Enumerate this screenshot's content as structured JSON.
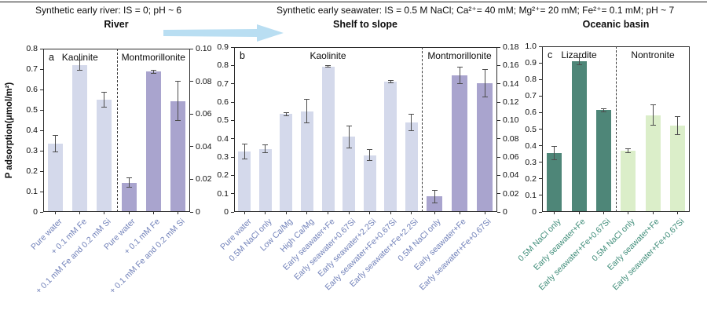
{
  "header": {
    "left": "Synthetic early river: IS = 0; pH ~ 6",
    "right": "Synthetic early seawater: IS = 0.5 M NaCl; Ca²⁺= 40 mM; Mg²⁺= 20 mM; Fe²⁺= 0.1 mM; pH ~ 7"
  },
  "y_axis_title": "P adsorption(μmol/m²)",
  "colors": {
    "kaolinite": "#d4d9eb",
    "montmorillonite": "#a9a4ce",
    "lizardite": "#4e8678",
    "nontronite": "#dbeec9",
    "arrow": "#b9def2",
    "error_bar": "#4d4d4d",
    "label_blue": "#7181b9",
    "label_teal": "#3f8d79"
  },
  "chart_data": [
    {
      "id": "a",
      "type": "bar",
      "title": "River",
      "panel_label": "a",
      "label_color": "#7181b9",
      "left_axis": {
        "max": 0.8,
        "ticks": [
          "0",
          "0.1",
          "0.2",
          "0.3",
          "0.4",
          "0.5",
          "0.6",
          "0.7",
          "0.8"
        ]
      },
      "right_axis": {
        "max": 0.1,
        "ticks": [
          "0",
          "0.02",
          "0.04",
          "0.06",
          "0.08",
          "0.10"
        ]
      },
      "sections": [
        {
          "name": "Kaolinite",
          "axis": "left",
          "color": "#d4d9eb",
          "categories": [
            "Pure water",
            "+ 0.1 mM Fe",
            "+ 0.1 mM Fe and 0.2 mM Si"
          ],
          "values": [
            0.335,
            0.72,
            0.55
          ],
          "errors": [
            0.04,
            0.025,
            0.038
          ]
        },
        {
          "name": "Montmorillonite",
          "axis": "right",
          "color": "#a9a4ce",
          "categories": [
            "Pure water",
            "+ 0.1 mM Fe",
            "+ 0.1 mM Fe and 0.2 mM Si"
          ],
          "values": [
            0.018,
            0.086,
            0.068
          ],
          "errors": [
            0.003,
            0.001,
            0.012
          ]
        }
      ]
    },
    {
      "id": "b",
      "type": "bar",
      "title": "Shelf to slope",
      "panel_label": "b",
      "label_color": "#7181b9",
      "left_axis": {
        "max": 0.9,
        "ticks": [
          "0",
          "0.1",
          "0.2",
          "0.3",
          "0.4",
          "0.5",
          "0.6",
          "0.7",
          "0.8",
          "0.9"
        ]
      },
      "right_axis": {
        "max": 0.18,
        "ticks": [
          "0",
          "0.02",
          "0.04",
          "0.06",
          "0.08",
          "0.10",
          "0.12",
          "0.14",
          "0.16",
          "0.18"
        ]
      },
      "sections": [
        {
          "name": "Kaolinite",
          "axis": "left",
          "color": "#d4d9eb",
          "categories": [
            "Pure water",
            "0.5M NaCl only",
            "Low Ca/Mg",
            "High Ca/Mg",
            "Early seawater+Fe",
            "Early seawater+0.67Si",
            "Early seawater+2.2Si",
            "Early seawater+Fe+0.67Si",
            "Early seawater+Fe+2.2Si"
          ],
          "values": [
            0.33,
            0.345,
            0.535,
            0.55,
            0.795,
            0.41,
            0.31,
            0.71,
            0.49
          ],
          "errors": [
            0.04,
            0.02,
            0.008,
            0.065,
            0.006,
            0.06,
            0.03,
            0.006,
            0.045
          ]
        },
        {
          "name": "Montmorillonite",
          "axis": "right",
          "color": "#a9a4ce",
          "categories": [
            "0.5M NaCl only",
            "Early seawater+Fe",
            "Early seawater+Fe+0.67Si"
          ],
          "values": [
            0.017,
            0.149,
            0.141
          ],
          "errors": [
            0.007,
            0.009,
            0.015
          ]
        }
      ]
    },
    {
      "id": "c",
      "type": "bar",
      "title": "Oceanic basin",
      "panel_label": "c",
      "label_color": "#3f8d79",
      "left_axis": {
        "max": 1.0,
        "ticks": [
          "0",
          "0.1",
          "0.2",
          "0.3",
          "0.4",
          "0.5",
          "0.6",
          "0.7",
          "0.8",
          "0.9",
          "1.0"
        ]
      },
      "right_axis": null,
      "sections": [
        {
          "name": "Lizardite",
          "axis": "left",
          "color": "#4e8678",
          "categories": [
            "0.5M NaCl only",
            "Early seawater+Fe",
            "Early seawater+Fe+0.67Si"
          ],
          "values": [
            0.355,
            0.91,
            0.615
          ],
          "errors": [
            0.04,
            0.02,
            0.01
          ]
        },
        {
          "name": "Nontronite",
          "axis": "left",
          "color": "#dbeec9",
          "categories": [
            "0.5M NaCl only",
            "Early seawater+Fe",
            "Early seawater+Fe+0.67Si"
          ],
          "values": [
            0.37,
            0.585,
            0.52
          ],
          "errors": [
            0.01,
            0.06,
            0.055
          ]
        }
      ]
    }
  ]
}
